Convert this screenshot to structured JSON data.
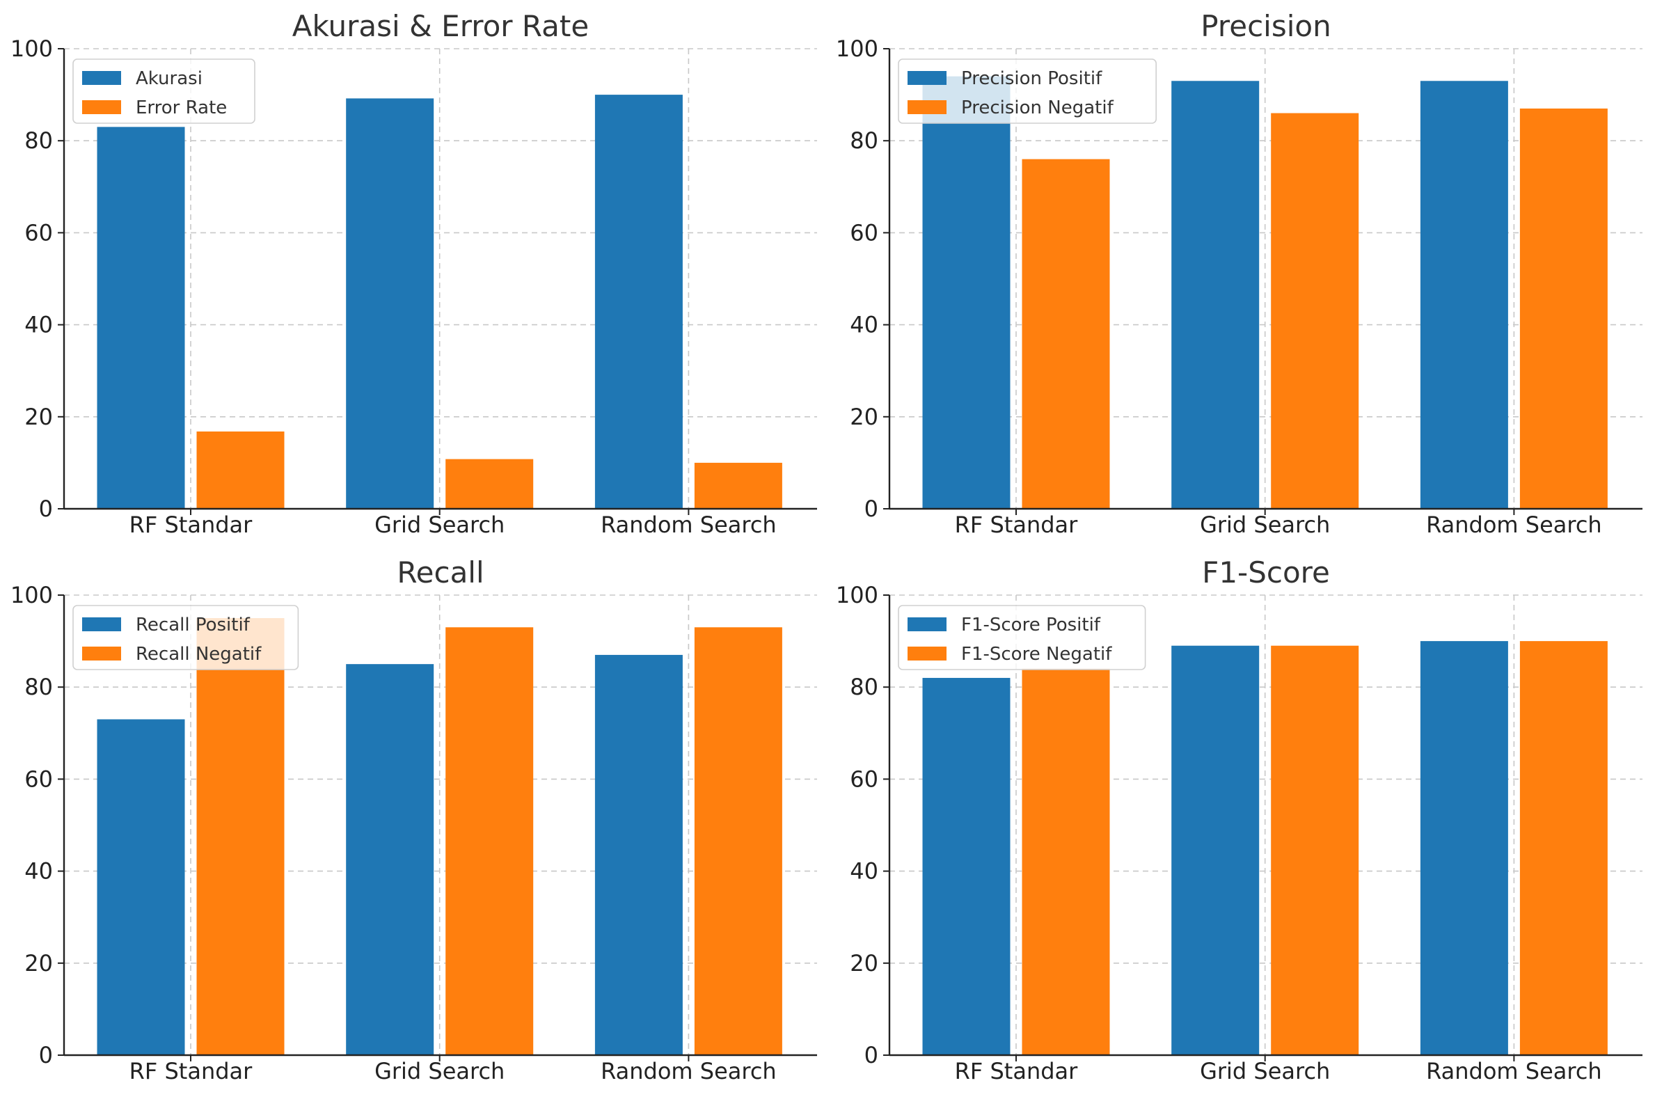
{
  "colors": {
    "series_1": "#1f77b4",
    "series_2": "#ff7f0e"
  },
  "chart_data": [
    {
      "type": "bar",
      "title": "Akurasi & Error Rate",
      "categories": [
        "RF Standar",
        "Grid Search",
        "Random Search"
      ],
      "series": [
        {
          "name": "Akurasi",
          "values": [
            83,
            89.2,
            90
          ]
        },
        {
          "name": "Error Rate",
          "values": [
            16.8,
            10.8,
            10
          ]
        }
      ],
      "ylim": [
        0,
        100
      ],
      "yticks": [
        0,
        20,
        40,
        60,
        80,
        100
      ],
      "grid": true,
      "legend": "top-left",
      "xlabel": "",
      "ylabel": ""
    },
    {
      "type": "bar",
      "title": "Precision",
      "categories": [
        "RF Standar",
        "Grid Search",
        "Random Search"
      ],
      "series": [
        {
          "name": "Precision Positif",
          "values": [
            94,
            93,
            93
          ]
        },
        {
          "name": "Precision Negatif",
          "values": [
            76,
            86,
            87
          ]
        }
      ],
      "ylim": [
        0,
        100
      ],
      "yticks": [
        0,
        20,
        40,
        60,
        80,
        100
      ],
      "grid": true,
      "legend": "top-left",
      "xlabel": "",
      "ylabel": ""
    },
    {
      "type": "bar",
      "title": "Recall",
      "categories": [
        "RF Standar",
        "Grid Search",
        "Random Search"
      ],
      "series": [
        {
          "name": "Recall Positif",
          "values": [
            73,
            85,
            87
          ]
        },
        {
          "name": "Recall Negatif",
          "values": [
            95,
            93,
            93
          ]
        }
      ],
      "ylim": [
        0,
        100
      ],
      "yticks": [
        0,
        20,
        40,
        60,
        80,
        100
      ],
      "grid": true,
      "legend": "top-left",
      "xlabel": "",
      "ylabel": ""
    },
    {
      "type": "bar",
      "title": "F1-Score",
      "categories": [
        "RF Standar",
        "Grid Search",
        "Random Search"
      ],
      "series": [
        {
          "name": "F1-Score Positif",
          "values": [
            82,
            89,
            90
          ]
        },
        {
          "name": "F1-Score Negatif",
          "values": [
            84,
            89,
            90
          ]
        }
      ],
      "ylim": [
        0,
        100
      ],
      "yticks": [
        0,
        20,
        40,
        60,
        80,
        100
      ],
      "grid": true,
      "legend": "top-left",
      "xlabel": "",
      "ylabel": ""
    }
  ]
}
